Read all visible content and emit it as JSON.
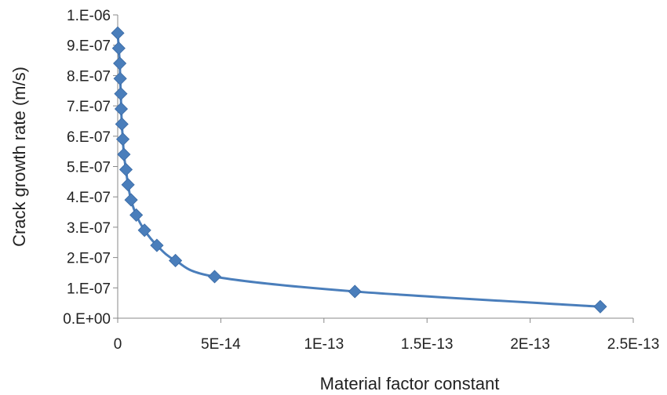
{
  "chart_data": {
    "type": "scatter",
    "title": "",
    "xlabel": "Material factor constant",
    "ylabel": "Crack growth rate (m/s)",
    "xlim": [
      0,
      2.5e-13
    ],
    "ylim": [
      0,
      1e-06
    ],
    "grid": false,
    "legend": "none",
    "x_ticks": [
      {
        "value": 0,
        "label": "0"
      },
      {
        "value": 5e-14,
        "label": "5E-14"
      },
      {
        "value": 1e-13,
        "label": "1E-13"
      },
      {
        "value": 1.5e-13,
        "label": "1.5E-13"
      },
      {
        "value": 2e-13,
        "label": "2E-13"
      },
      {
        "value": 2.5e-13,
        "label": "2.5E-13"
      }
    ],
    "y_ticks": [
      {
        "value": 0,
        "label": "0.E+00"
      },
      {
        "value": 1e-07,
        "label": "1.E-07"
      },
      {
        "value": 2e-07,
        "label": "2.E-07"
      },
      {
        "value": 3e-07,
        "label": "3.E-07"
      },
      {
        "value": 4e-07,
        "label": "4.E-07"
      },
      {
        "value": 5e-07,
        "label": "5.E-07"
      },
      {
        "value": 6e-07,
        "label": "6.E-07"
      },
      {
        "value": 7e-07,
        "label": "7.E-07"
      },
      {
        "value": 8e-07,
        "label": "8.E-07"
      },
      {
        "value": 9e-07,
        "label": "9.E-07"
      },
      {
        "value": 1e-06,
        "label": "1.E-06"
      }
    ],
    "series": [
      {
        "color": "#4a7ebb",
        "marker": "diamond",
        "line": "smooth",
        "points": [
          {
            "x": 0.0,
            "y": 9.4e-07
          },
          {
            "x": 5e-16,
            "y": 8.9e-07
          },
          {
            "x": 1e-15,
            "y": 8.4e-07
          },
          {
            "x": 1.2e-15,
            "y": 7.9e-07
          },
          {
            "x": 1.5e-15,
            "y": 7.4e-07
          },
          {
            "x": 1.7e-15,
            "y": 6.9e-07
          },
          {
            "x": 2e-15,
            "y": 6.4e-07
          },
          {
            "x": 2.5e-15,
            "y": 5.9e-07
          },
          {
            "x": 3e-15,
            "y": 5.4e-07
          },
          {
            "x": 4e-15,
            "y": 4.9e-07
          },
          {
            "x": 5e-15,
            "y": 4.4e-07
          },
          {
            "x": 6.5e-15,
            "y": 3.9e-07
          },
          {
            "x": 9e-15,
            "y": 3.4e-07
          },
          {
            "x": 1.3e-14,
            "y": 2.9e-07
          },
          {
            "x": 1.9e-14,
            "y": 2.4e-07
          },
          {
            "x": 2.8e-14,
            "y": 1.9e-07
          },
          {
            "x": 4.7e-14,
            "y": 1.37e-07
          },
          {
            "x": 1.15e-13,
            "y": 8.8e-08
          },
          {
            "x": 2.34e-13,
            "y": 3.8e-08
          }
        ]
      }
    ]
  }
}
